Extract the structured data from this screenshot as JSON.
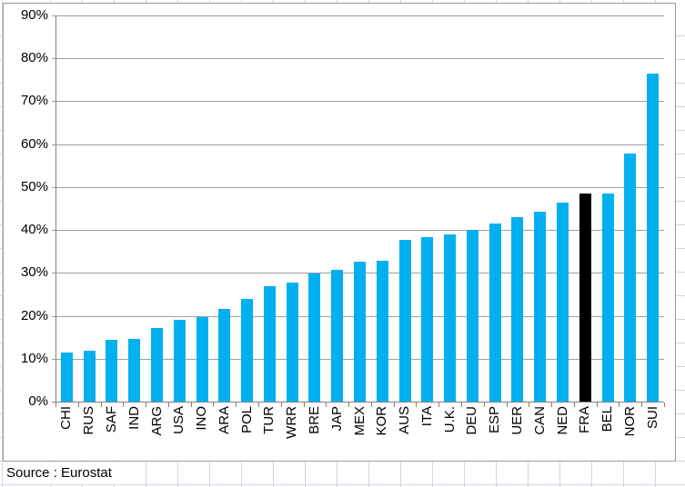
{
  "source_note": "Source : Eurostat",
  "colors": {
    "bar": "#00B0F0",
    "highlight": "#000000",
    "gridline": "#9e9e9e",
    "axis": "#808080",
    "chart_border": "#9a9a9a",
    "sheet_grid": "#cdd6e4"
  },
  "chart_data": {
    "type": "bar",
    "categories": [
      "CHI",
      "RUS",
      "SAF",
      "IND",
      "ARG",
      "USA",
      "INO",
      "ARA",
      "POL",
      "TUR",
      "WRR",
      "BRE",
      "JAP",
      "MEX",
      "KOR",
      "AUS",
      "ITA",
      "U.K.",
      "DEU",
      "ESP",
      "UER",
      "CAN",
      "NED",
      "FRA",
      "BEL",
      "NOR",
      "SUI"
    ],
    "values": [
      11.5,
      11.9,
      14.3,
      14.6,
      17.1,
      19.1,
      19.8,
      21.5,
      24.0,
      27.0,
      27.7,
      29.9,
      30.8,
      32.6,
      32.9,
      37.7,
      38.4,
      38.9,
      40.1,
      41.5,
      42.9,
      44.3,
      46.3,
      48.4,
      48.6,
      57.8,
      76.4
    ],
    "highlighted_category": "FRA",
    "y_tick_labels": [
      "0%",
      "10%",
      "20%",
      "30%",
      "40%",
      "50%",
      "60%",
      "70%",
      "80%",
      "90%"
    ],
    "ylim": [
      0,
      90
    ],
    "y_tick_step": 10,
    "grid": true,
    "legend": "none",
    "title": "",
    "xlabel": "",
    "ylabel": ""
  }
}
